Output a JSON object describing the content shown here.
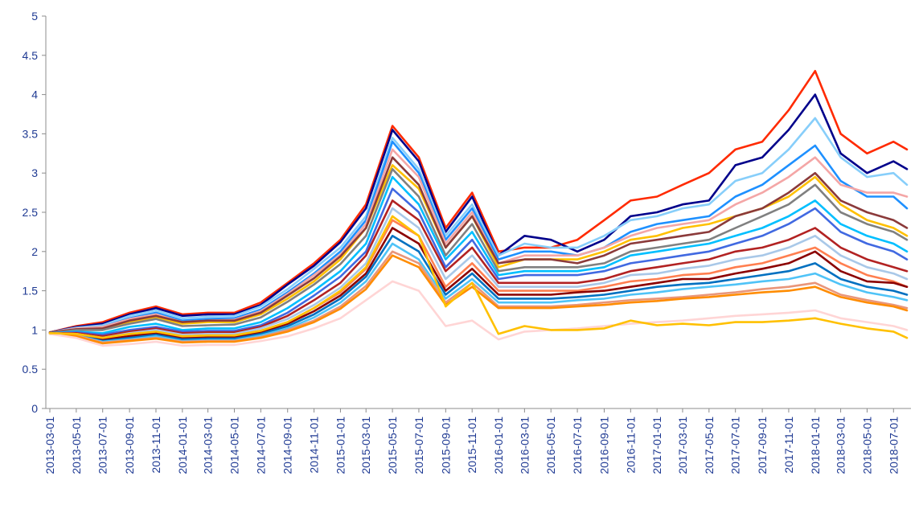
{
  "chart_data": {
    "type": "line",
    "title": "",
    "xlabel": "",
    "ylabel": "",
    "ylim": [
      0,
      5
    ],
    "yticks": [
      0,
      0.5,
      1,
      1.5,
      2,
      2.5,
      3,
      3.5,
      4,
      4.5,
      5
    ],
    "ytick_labels": [
      "0",
      "0.5",
      "1",
      "1.5",
      "2",
      "2.5",
      "3",
      "3.5",
      "4",
      "4.5",
      "5"
    ],
    "xtick_labels": [
      "2013-03-01",
      "2013-05-01",
      "2013-07-01",
      "2013-09-01",
      "2013-11-01",
      "2014-01-01",
      "2014-03-01",
      "2014-05-01",
      "2014-07-01",
      "2014-09-01",
      "2014-11-01",
      "2015-01-01",
      "2015-03-01",
      "2015-05-01",
      "2015-07-01",
      "2015-09-01",
      "2015-11-01",
      "2016-01-01",
      "2016-03-01",
      "2016-05-01",
      "2016-07-01",
      "2016-09-01",
      "2016-11-01",
      "2017-01-01",
      "2017-03-01",
      "2017-05-01",
      "2017-07-01",
      "2017-09-01",
      "2017-11-01",
      "2018-01-01",
      "2018-03-01",
      "2018-05-01",
      "2018-07-01"
    ],
    "grid": false,
    "legend": "none",
    "x": [
      "2013-03-01",
      "2013-05-01",
      "2013-07-01",
      "2013-09-01",
      "2013-11-01",
      "2014-01-01",
      "2014-03-01",
      "2014-05-01",
      "2014-07-01",
      "2014-09-01",
      "2014-11-01",
      "2015-01-01",
      "2015-03-01",
      "2015-05-01",
      "2015-07-01",
      "2015-09-01",
      "2015-11-01",
      "2016-01-01",
      "2016-03-01",
      "2016-05-01",
      "2016-07-01",
      "2016-09-01",
      "2016-11-01",
      "2017-01-01",
      "2017-03-01",
      "2017-05-01",
      "2017-07-01",
      "2017-09-01",
      "2017-11-01",
      "2018-01-01",
      "2018-03-01",
      "2018-05-01",
      "2018-07-01",
      "2018-08-01"
    ],
    "series": [
      {
        "color": "#ff2a00",
        "values": [
          0.97,
          1.05,
          1.1,
          1.22,
          1.3,
          1.2,
          1.22,
          1.22,
          1.35,
          1.6,
          1.85,
          2.15,
          2.6,
          3.6,
          3.2,
          2.3,
          2.75,
          2.0,
          2.05,
          2.05,
          2.15,
          2.4,
          2.65,
          2.7,
          2.85,
          3.0,
          3.3,
          3.4,
          3.8,
          4.3,
          3.5,
          3.25,
          3.4,
          3.3
        ]
      },
      {
        "color": "#00008b",
        "values": [
          0.97,
          1.04,
          1.08,
          1.2,
          1.28,
          1.18,
          1.2,
          1.2,
          1.32,
          1.58,
          1.82,
          2.12,
          2.55,
          3.55,
          3.15,
          2.25,
          2.7,
          1.95,
          2.2,
          2.15,
          2.0,
          2.15,
          2.45,
          2.5,
          2.6,
          2.65,
          3.1,
          3.2,
          3.55,
          4.0,
          3.25,
          3.0,
          3.15,
          3.05
        ]
      },
      {
        "color": "#87cefa",
        "values": [
          0.97,
          1.03,
          1.06,
          1.18,
          1.25,
          1.15,
          1.17,
          1.18,
          1.3,
          1.52,
          1.78,
          2.05,
          2.45,
          3.45,
          3.05,
          2.2,
          2.6,
          1.95,
          2.1,
          2.05,
          2.05,
          2.2,
          2.4,
          2.45,
          2.55,
          2.6,
          2.9,
          3.0,
          3.3,
          3.7,
          3.2,
          2.95,
          3.0,
          2.85
        ]
      },
      {
        "color": "#1e90ff",
        "values": [
          0.97,
          1.02,
          1.04,
          1.15,
          1.22,
          1.12,
          1.14,
          1.15,
          1.26,
          1.48,
          1.72,
          2.0,
          2.4,
          3.4,
          3.0,
          2.15,
          2.55,
          1.9,
          2.0,
          2.0,
          1.95,
          2.05,
          2.25,
          2.35,
          2.4,
          2.45,
          2.7,
          2.85,
          3.1,
          3.35,
          2.9,
          2.7,
          2.7,
          2.55
        ]
      },
      {
        "color": "#f4a6a6",
        "values": [
          0.97,
          1.02,
          1.04,
          1.14,
          1.2,
          1.1,
          1.12,
          1.13,
          1.24,
          1.46,
          1.7,
          1.96,
          2.35,
          3.3,
          2.95,
          2.1,
          2.5,
          1.85,
          1.95,
          1.95,
          1.95,
          2.05,
          2.2,
          2.3,
          2.35,
          2.4,
          2.6,
          2.75,
          2.95,
          3.2,
          2.85,
          2.75,
          2.75,
          2.7
        ]
      },
      {
        "color": "#ffc000",
        "values": [
          0.97,
          1.0,
          1.02,
          1.1,
          1.16,
          1.08,
          1.1,
          1.1,
          1.2,
          1.4,
          1.62,
          1.9,
          2.3,
          3.1,
          2.8,
          2.05,
          2.45,
          1.8,
          1.9,
          1.9,
          1.9,
          2.0,
          2.15,
          2.2,
          2.3,
          2.35,
          2.45,
          2.55,
          2.7,
          2.95,
          2.6,
          2.4,
          2.3,
          2.2
        ]
      },
      {
        "color": "#8b3a3a",
        "values": [
          0.97,
          1.01,
          1.02,
          1.12,
          1.18,
          1.1,
          1.12,
          1.12,
          1.22,
          1.44,
          1.66,
          1.94,
          2.3,
          3.2,
          2.85,
          2.05,
          2.45,
          1.85,
          1.9,
          1.9,
          1.85,
          1.95,
          2.1,
          2.15,
          2.2,
          2.25,
          2.45,
          2.55,
          2.75,
          3.0,
          2.65,
          2.5,
          2.4,
          2.3
        ]
      },
      {
        "color": "#808080",
        "values": [
          0.96,
          1.0,
          1.0,
          1.08,
          1.14,
          1.05,
          1.06,
          1.07,
          1.16,
          1.36,
          1.58,
          1.84,
          2.2,
          3.05,
          2.7,
          1.95,
          2.35,
          1.75,
          1.8,
          1.8,
          1.8,
          1.85,
          2.0,
          2.05,
          2.1,
          2.15,
          2.3,
          2.45,
          2.6,
          2.85,
          2.5,
          2.35,
          2.25,
          2.15
        ]
      },
      {
        "color": "#00bfff",
        "values": [
          0.96,
          0.98,
          0.96,
          1.04,
          1.08,
          1.0,
          1.02,
          1.02,
          1.1,
          1.28,
          1.5,
          1.75,
          2.1,
          2.95,
          2.6,
          1.9,
          2.25,
          1.7,
          1.75,
          1.75,
          1.75,
          1.8,
          1.95,
          2.0,
          2.05,
          2.1,
          2.2,
          2.3,
          2.45,
          2.65,
          2.35,
          2.2,
          2.1,
          2.0
        ]
      },
      {
        "color": "#4169e1",
        "values": [
          0.96,
          0.97,
          0.94,
          1.0,
          1.04,
          0.98,
          0.99,
          0.99,
          1.06,
          1.22,
          1.44,
          1.68,
          2.0,
          2.8,
          2.5,
          1.8,
          2.15,
          1.65,
          1.7,
          1.7,
          1.7,
          1.75,
          1.85,
          1.9,
          1.95,
          2.0,
          2.1,
          2.2,
          2.35,
          2.55,
          2.25,
          2.1,
          2.0,
          1.9
        ]
      },
      {
        "color": "#b22222",
        "values": [
          0.96,
          0.96,
          0.92,
          0.98,
          1.02,
          0.96,
          0.97,
          0.97,
          1.04,
          1.18,
          1.38,
          1.6,
          1.95,
          2.65,
          2.4,
          1.75,
          2.05,
          1.6,
          1.6,
          1.6,
          1.6,
          1.65,
          1.75,
          1.8,
          1.85,
          1.9,
          2.0,
          2.05,
          2.15,
          2.3,
          2.05,
          1.9,
          1.8,
          1.75
        ]
      },
      {
        "color": "#a9c8e8",
        "values": [
          0.96,
          0.95,
          0.9,
          0.96,
          1.0,
          0.94,
          0.95,
          0.95,
          1.02,
          1.14,
          1.32,
          1.54,
          1.85,
          2.55,
          2.3,
          1.65,
          1.95,
          1.55,
          1.55,
          1.55,
          1.55,
          1.6,
          1.7,
          1.72,
          1.78,
          1.82,
          1.9,
          1.95,
          2.05,
          2.2,
          1.95,
          1.8,
          1.72,
          1.65
        ]
      },
      {
        "color": "#ff7f50",
        "values": [
          0.96,
          0.95,
          0.88,
          0.93,
          0.97,
          0.92,
          0.93,
          0.93,
          0.99,
          1.1,
          1.28,
          1.48,
          1.78,
          2.4,
          2.2,
          1.55,
          1.85,
          1.5,
          1.5,
          1.5,
          1.5,
          1.55,
          1.62,
          1.65,
          1.7,
          1.72,
          1.8,
          1.85,
          1.95,
          2.05,
          1.85,
          1.7,
          1.62,
          1.55
        ]
      },
      {
        "color": "#8b0000",
        "values": [
          0.96,
          0.94,
          0.88,
          0.92,
          0.96,
          0.9,
          0.91,
          0.91,
          0.97,
          1.08,
          1.24,
          1.44,
          1.72,
          2.3,
          2.1,
          1.5,
          1.78,
          1.45,
          1.45,
          1.45,
          1.48,
          1.5,
          1.55,
          1.6,
          1.65,
          1.65,
          1.72,
          1.78,
          1.85,
          2.0,
          1.75,
          1.62,
          1.6,
          1.55
        ]
      },
      {
        "color": "#0070c0",
        "values": [
          0.96,
          0.94,
          0.86,
          0.9,
          0.94,
          0.88,
          0.89,
          0.89,
          0.95,
          1.05,
          1.2,
          1.4,
          1.68,
          2.2,
          2.0,
          1.45,
          1.72,
          1.4,
          1.4,
          1.4,
          1.42,
          1.45,
          1.5,
          1.55,
          1.58,
          1.6,
          1.65,
          1.7,
          1.75,
          1.85,
          1.65,
          1.55,
          1.5,
          1.45
        ]
      },
      {
        "color": "#4fc3f7",
        "values": [
          0.96,
          0.93,
          0.85,
          0.88,
          0.92,
          0.86,
          0.87,
          0.87,
          0.93,
          1.02,
          1.16,
          1.35,
          1.62,
          2.1,
          1.9,
          1.4,
          1.65,
          1.35,
          1.35,
          1.35,
          1.38,
          1.4,
          1.45,
          1.48,
          1.52,
          1.55,
          1.58,
          1.62,
          1.65,
          1.72,
          1.58,
          1.48,
          1.42,
          1.38
        ]
      },
      {
        "color": "#e9967a",
        "values": [
          0.96,
          0.93,
          0.84,
          0.87,
          0.9,
          0.85,
          0.86,
          0.86,
          0.91,
          1.0,
          1.12,
          1.3,
          1.56,
          2.0,
          1.85,
          1.35,
          1.6,
          1.3,
          1.3,
          1.3,
          1.32,
          1.35,
          1.38,
          1.4,
          1.42,
          1.45,
          1.48,
          1.52,
          1.55,
          1.6,
          1.45,
          1.38,
          1.32,
          1.28
        ]
      },
      {
        "color": "#ff8c00",
        "values": [
          0.95,
          0.92,
          0.83,
          0.86,
          0.89,
          0.84,
          0.85,
          0.85,
          0.9,
          0.98,
          1.1,
          1.27,
          1.52,
          1.95,
          1.8,
          1.32,
          1.55,
          1.28,
          1.28,
          1.28,
          1.3,
          1.32,
          1.35,
          1.37,
          1.4,
          1.42,
          1.45,
          1.48,
          1.5,
          1.55,
          1.42,
          1.35,
          1.3,
          1.25
        ]
      },
      {
        "color": "#ffd5d5",
        "values": [
          0.95,
          0.9,
          0.8,
          0.82,
          0.85,
          0.8,
          0.81,
          0.81,
          0.86,
          0.92,
          1.02,
          1.15,
          1.38,
          1.62,
          1.5,
          1.05,
          1.12,
          0.88,
          0.98,
          1.0,
          1.02,
          1.05,
          1.08,
          1.1,
          1.12,
          1.15,
          1.18,
          1.2,
          1.22,
          1.25,
          1.15,
          1.1,
          1.05,
          1.0
        ]
      },
      {
        "color": "#ffc000",
        "values": [
          0.96,
          0.95,
          0.9,
          0.95,
          0.98,
          0.92,
          0.93,
          0.93,
          0.99,
          1.1,
          1.28,
          1.5,
          1.8,
          2.45,
          2.2,
          1.3,
          1.6,
          0.95,
          1.05,
          1.0,
          1.0,
          1.02,
          1.12,
          1.06,
          1.08,
          1.06,
          1.1,
          1.1,
          1.12,
          1.15,
          1.08,
          1.02,
          0.98,
          0.9
        ]
      }
    ]
  }
}
